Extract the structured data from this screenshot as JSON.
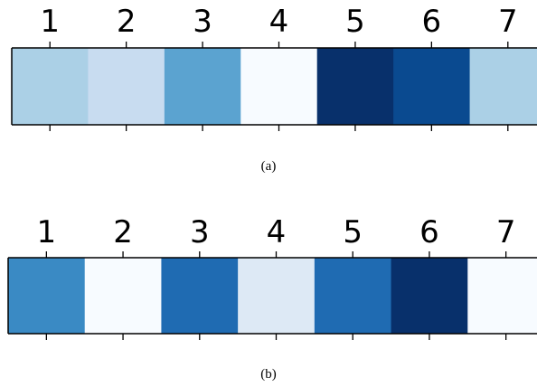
{
  "chart_data": [
    {
      "type": "heatmap",
      "caption": "(a)",
      "x": [
        1,
        2,
        3,
        4,
        5,
        6,
        7
      ],
      "tick_labels": [
        "1",
        "2",
        "3",
        "4",
        "5",
        "6",
        "7"
      ],
      "colormap": "Blues",
      "values": [
        0.32,
        0.22,
        0.58,
        0.02,
        1.0,
        0.85,
        0.32
      ],
      "colors": [
        "#abd0e6",
        "#c8dcf0",
        "#5ba3d0",
        "#f7fbff",
        "#08306b",
        "#0a4a90",
        "#abd0e6"
      ],
      "tick_label_position": "top",
      "grid": false
    },
    {
      "type": "heatmap",
      "caption": "(b)",
      "x": [
        1,
        2,
        3,
        4,
        5,
        6,
        7
      ],
      "tick_labels": [
        "1",
        "2",
        "3",
        "4",
        "5",
        "6",
        "7"
      ],
      "colormap": "Blues",
      "values": [
        0.62,
        0.0,
        0.78,
        0.12,
        0.78,
        1.0,
        0.0
      ],
      "colors": [
        "#3a8ac4",
        "#f7fbff",
        "#1f6bb2",
        "#dde9f5",
        "#1f6bb2",
        "#08306b",
        "#f7fbff"
      ],
      "tick_label_position": "top",
      "grid": false
    }
  ]
}
